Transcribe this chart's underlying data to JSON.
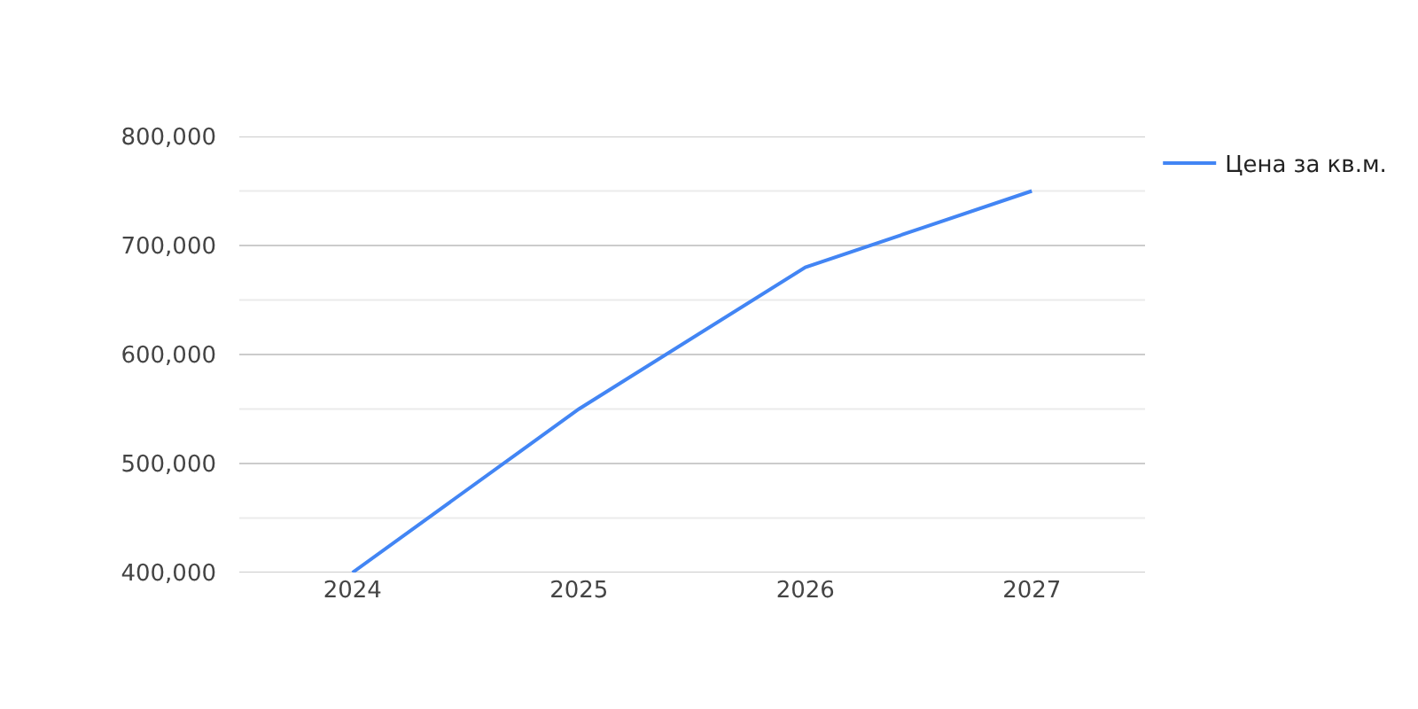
{
  "chart_data": {
    "type": "line",
    "categories": [
      "2024",
      "2025",
      "2026",
      "2027"
    ],
    "series": [
      {
        "name": "Цена за кв.м.",
        "color": "#4285f4",
        "values": [
          400000,
          550000,
          680000,
          750000
        ]
      }
    ],
    "ylim": [
      400000,
      800000
    ],
    "yticks": [
      {
        "value": 400000,
        "label": "400,000"
      },
      {
        "value": 450000,
        "label": null
      },
      {
        "value": 500000,
        "label": "500,000"
      },
      {
        "value": 550000,
        "label": null
      },
      {
        "value": 600000,
        "label": "600,000"
      },
      {
        "value": 650000,
        "label": null
      },
      {
        "value": 700000,
        "label": "700,000"
      },
      {
        "value": 750000,
        "label": null
      },
      {
        "value": 800000,
        "label": "800,000"
      }
    ],
    "grid": "y",
    "legend": "top right",
    "marker": "none",
    "line_style": "solid"
  }
}
